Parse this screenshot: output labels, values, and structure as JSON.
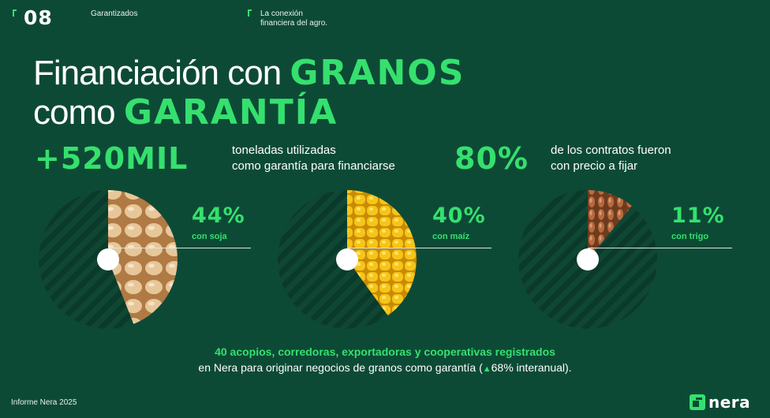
{
  "header": {
    "page_number": "08",
    "section": "Garantizados",
    "tagline": "La conexión\nfinanciera del agro."
  },
  "title": {
    "line1_plain": "Financiación con ",
    "line1_accent": "GRANOS",
    "line2_plain": "como ",
    "line2_accent": "GARANTÍA"
  },
  "stats": {
    "tons_value": "+520MIL",
    "tons_text": "toneladas utilizadas\ncomo garantía para financiarse",
    "contracts_value": "80%",
    "contracts_text": "de los contratos fueron\ncon precio a fijar"
  },
  "chart_data": {
    "type": "pie",
    "charts": [
      {
        "label": "con soja",
        "value_label": "44%",
        "value": 44,
        "image": "soybeans"
      },
      {
        "label": "con maíz",
        "value_label": "40%",
        "value": 40,
        "image": "corn"
      },
      {
        "label": "con trigo",
        "value_label": "11%",
        "value": 11,
        "image": "wheat"
      }
    ]
  },
  "footer_note": {
    "highlight": "40 acopios, corredoras, exportadoras y cooperativas registrados",
    "text_before": "en Nera para originar negocios de granos como garantía (",
    "arrow": "▲",
    "growth": "68% interanual).",
    "arrow_icon": "triangle-up-icon"
  },
  "footer": {
    "report": "Informe Nera 2025",
    "brand": "nera"
  },
  "colors": {
    "background": "#0d4a36",
    "accent": "#35e06e",
    "pie_dark": "#0a3a2b",
    "pie_stripe": "#0f4733"
  }
}
